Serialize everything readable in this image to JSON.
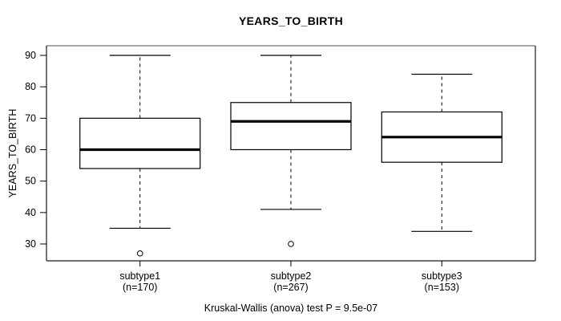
{
  "chart_data": {
    "type": "boxplot",
    "title": "YEARS_TO_BIRTH",
    "ylabel": "YEARS_TO_BIRTH",
    "xlabel": "",
    "caption": "Kruskal-Wallis (anova) test P = 9.5e-07",
    "y_ticks": [
      30,
      40,
      50,
      60,
      70,
      80,
      90
    ],
    "ylim": [
      24.6,
      93.1
    ],
    "grid": false,
    "legend": "none",
    "groups": [
      {
        "label": "subtype1",
        "sublabel": "(n=170)",
        "n": 170,
        "whisker_low": 35,
        "q1": 54,
        "median": 60,
        "q3": 70,
        "whisker_high": 90,
        "outliers": [
          27
        ]
      },
      {
        "label": "subtype2",
        "sublabel": "(n=267)",
        "n": 267,
        "whisker_low": 41,
        "q1": 60,
        "median": 69,
        "q3": 75,
        "whisker_high": 90,
        "outliers": [
          30
        ]
      },
      {
        "label": "subtype3",
        "sublabel": "(n=153)",
        "n": 153,
        "whisker_low": 34,
        "q1": 56,
        "median": 64,
        "q3": 72,
        "whisker_high": 84,
        "outliers": []
      }
    ],
    "colors": {
      "box_stroke": "#000000",
      "box_fill": "#ffffff",
      "median": "#000000",
      "whisker": "#000000",
      "frame_top": "#8c8c8c",
      "frame": "#1a1a1a",
      "background": "#ffffff",
      "text": "#000000"
    }
  }
}
